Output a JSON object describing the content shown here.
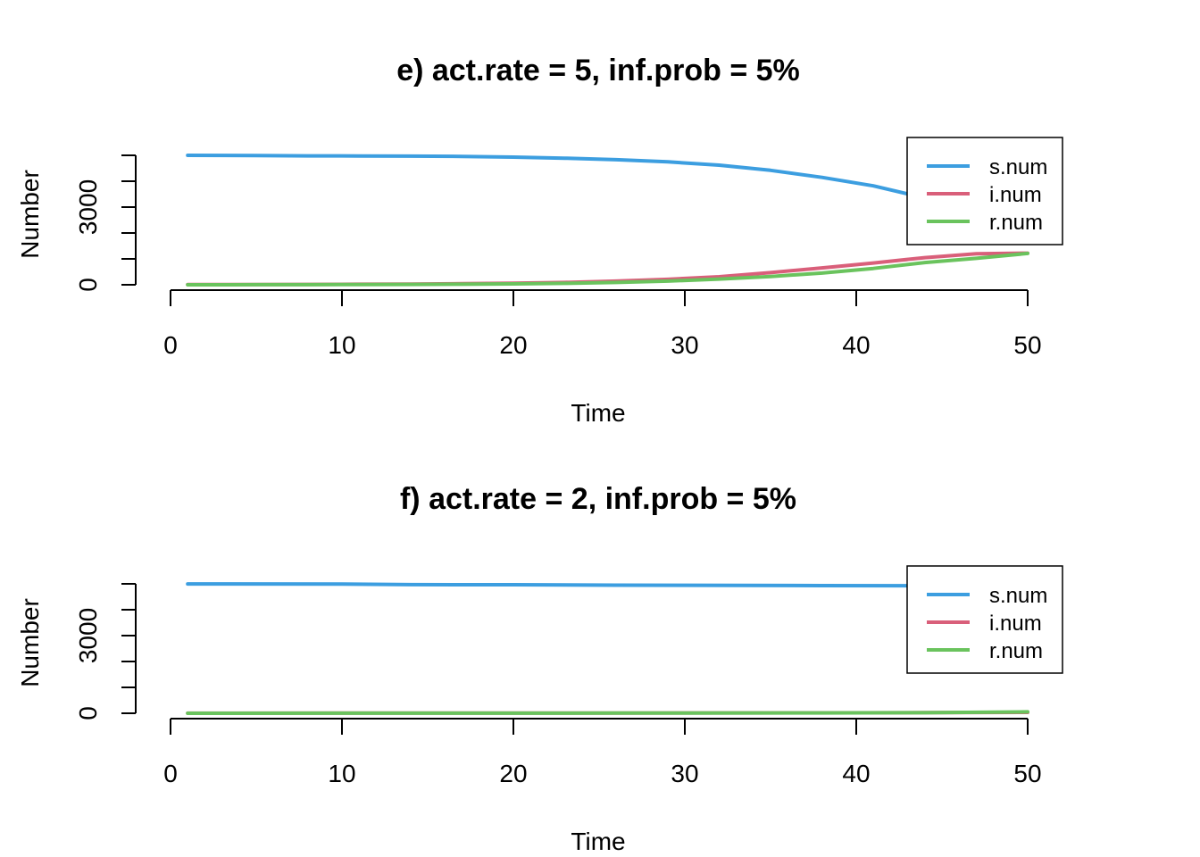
{
  "chart_data": [
    {
      "type": "line",
      "title": "e) act.rate = 5, inf.prob = 5%",
      "xlabel": "Time",
      "ylabel": "Number",
      "xlim": [
        0,
        50
      ],
      "ylim": [
        0,
        5000
      ],
      "xticks": [
        0,
        10,
        20,
        30,
        40,
        50
      ],
      "yticks": [
        0,
        1000,
        2000,
        3000,
        4000,
        5000
      ],
      "ytick_labels": [
        "0",
        "",
        "",
        "3000",
        "",
        ""
      ],
      "legend_position": "top-right",
      "x": [
        1,
        5,
        8,
        11,
        14,
        17,
        20,
        23,
        26,
        29,
        32,
        35,
        38,
        41,
        44,
        47,
        50
      ],
      "series": [
        {
          "name": "s.num",
          "color": "#3C9EE0",
          "values": [
            5000,
            4990,
            4980,
            4975,
            4970,
            4960,
            4930,
            4890,
            4830,
            4750,
            4620,
            4420,
            4150,
            3820,
            3350,
            2950,
            2560
          ]
        },
        {
          "name": "i.num",
          "color": "#D95F7A",
          "values": [
            10,
            12,
            15,
            20,
            28,
            40,
            60,
            90,
            140,
            210,
            310,
            470,
            650,
            840,
            1050,
            1200,
            1220
          ]
        },
        {
          "name": "r.num",
          "color": "#6AC35D",
          "values": [
            0,
            2,
            5,
            9,
            14,
            22,
            35,
            55,
            90,
            140,
            220,
            320,
            450,
            630,
            860,
            1020,
            1210
          ]
        }
      ]
    },
    {
      "type": "line",
      "title": "f) act.rate = 2, inf.prob = 5%",
      "xlabel": "Time",
      "ylabel": "Number",
      "xlim": [
        0,
        50
      ],
      "ylim": [
        0,
        5000
      ],
      "xticks": [
        0,
        10,
        20,
        30,
        40,
        50
      ],
      "yticks": [
        0,
        1000,
        2000,
        3000,
        4000,
        5000
      ],
      "ytick_labels": [
        "0",
        "",
        "",
        "3000",
        "",
        ""
      ],
      "legend_position": "top-right",
      "x": [
        1,
        10,
        14,
        20,
        26,
        30,
        38,
        44,
        50
      ],
      "series": [
        {
          "name": "s.num",
          "color": "#3C9EE0",
          "values": [
            4995,
            4990,
            4970,
            4965,
            4950,
            4945,
            4930,
            4925,
            4915
          ]
        },
        {
          "name": "i.num",
          "color": "#D95F7A",
          "values": [
            5,
            6,
            8,
            10,
            12,
            14,
            18,
            25,
            35
          ]
        },
        {
          "name": "r.num",
          "color": "#6AC35D",
          "values": [
            0,
            2,
            3,
            5,
            8,
            10,
            14,
            20,
            55
          ]
        }
      ]
    }
  ]
}
